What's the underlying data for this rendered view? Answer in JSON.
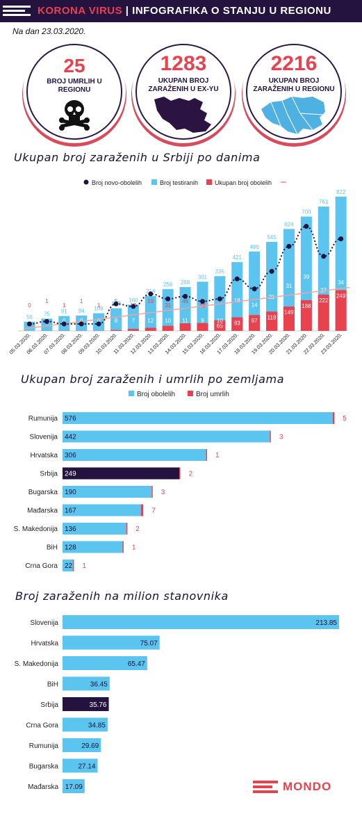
{
  "header": {
    "title_accent": "KORONA VIRUS",
    "title_rest": "| INFOGRAFIKA O STANJU U REGIONU"
  },
  "date": "Na dan 23.03.2020.",
  "stats": [
    {
      "value": "25",
      "label_line1": "BROJ UMRLIH U",
      "label_line2": "REGIONU",
      "icon": "skull-crossbones-icon"
    },
    {
      "value": "1283",
      "label_line1": "UKUPAN BROJ",
      "label_line2": "ZARAŽENIH U EX-YU",
      "icon": "ex-yu-map-icon"
    },
    {
      "value": "2216",
      "label_line1": "UKUPAN BROJ",
      "label_line2": "ZARAŽENIH U REGIONU",
      "icon": "region-map-icon"
    }
  ],
  "titles": {
    "serbia_daily": "Ukupan broj zaraženih u Srbiji po danima",
    "by_country": "Ukupan broj zaraženih i umrlih po zemljama",
    "per_million": "Broj zaraženih na milion stanovnika"
  },
  "colors": {
    "dark": "#24123f",
    "blue": "#5bc4ef",
    "red": "#e8424f",
    "trend": "#f2a3a3"
  },
  "brand": "MONDO",
  "chart_data": [
    {
      "type": "bar",
      "title": "Ukupan broj zaraženih u Srbiji po danima",
      "categories": [
        "05.03.2020.",
        "06.03.2020.",
        "07.03.2020.",
        "08.03.2020.",
        "09.03.2020.",
        "10.03.2020.",
        "11.03.2020.",
        "12.03.2020.",
        "13.03.2020.",
        "14.03.2020.",
        "15.03.2020.",
        "16.03.2020.",
        "17.03.2020.",
        "18.03.2020.",
        "19.03.2020.",
        "20.03.2020.",
        "21.03.2020.",
        "22.03.2020.",
        "23.03.2020."
      ],
      "series": [
        {
          "name": "Broj testiranih",
          "type": "bar",
          "values": [
            56,
            75,
            91,
            94,
            108,
            138,
            160,
            214,
            256,
            268,
            301,
            335,
            421,
            486,
            545,
            624,
            700,
            761,
            822
          ]
        },
        {
          "name": "Ukupan broj obolelih",
          "type": "bar",
          "values": [
            0,
            1,
            1,
            1,
            1,
            5,
            12,
            19,
            31,
            46,
            48,
            65,
            83,
            97,
            118,
            149,
            188,
            222,
            249
          ]
        },
        {
          "name": "Broj novo-obolelih",
          "type": "line",
          "values": [
            0,
            1,
            0,
            0,
            0,
            8,
            7,
            12,
            10,
            11,
            9,
            10,
            18,
            14,
            21,
            31,
            39,
            27,
            34
          ]
        }
      ],
      "legend": [
        "Broj novo-obolelih",
        "Broj testiranih",
        "Ukupan broj obolelih"
      ],
      "ylim": [
        0,
        850
      ]
    },
    {
      "type": "bar",
      "orientation": "horizontal",
      "title": "Ukupan broj zaraženih i umrlih po zemljama",
      "categories": [
        "Rumunija",
        "Slovenija",
        "Hrvatska",
        "Srbija",
        "Bugarska",
        "Mađarska",
        "S. Makedonija",
        "BiH",
        "Crna Gora"
      ],
      "series": [
        {
          "name": "Broj obolelih",
          "values": [
            576,
            442,
            306,
            249,
            190,
            167,
            136,
            128,
            22
          ]
        },
        {
          "name": "Broj umrlih",
          "values": [
            5,
            3,
            1,
            2,
            3,
            7,
            2,
            1,
            1
          ]
        }
      ],
      "highlight": "Srbija"
    },
    {
      "type": "bar",
      "orientation": "horizontal",
      "title": "Broj zaraženih na milion stanovnika",
      "categories": [
        "Slovenija",
        "Hrvatska",
        "S. Makedonija",
        "BiH",
        "Srbija",
        "Crna Gora",
        "Rumunija",
        "Bugarska",
        "Mađarska"
      ],
      "values": [
        "213.85",
        "75.07",
        "65.47",
        "36.45",
        "35.76",
        "34.85",
        "29.69",
        "27.14",
        "17.09"
      ],
      "highlight": "Srbija"
    }
  ]
}
